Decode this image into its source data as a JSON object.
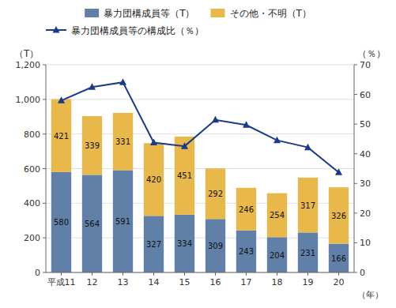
{
  "chart_data": {
    "type": "bar",
    "stacked": true,
    "categories": [
      "平成11",
      "12",
      "13",
      "14",
      "15",
      "16",
      "17",
      "18",
      "19",
      "20"
    ],
    "series": [
      {
        "name": "暴力団構成員等（T）",
        "color": "#6080a8",
        "values": [
          580,
          564,
          591,
          327,
          334,
          309,
          243,
          204,
          231,
          166
        ]
      },
      {
        "name": "その他・不明（T）",
        "color": "#e8b84b",
        "values": [
          421,
          339,
          331,
          420,
          451,
          292,
          246,
          254,
          317,
          326
        ]
      },
      {
        "name": "暴力団構成員等の構成比（％）",
        "type": "line",
        "axis": "y2",
        "color": "#1a3a8a",
        "marker": "triangle",
        "values": [
          57.94,
          62.46,
          64.1,
          43.77,
          42.55,
          51.41,
          49.69,
          44.54,
          42.15,
          33.74
        ]
      }
    ],
    "y_label": "（T）",
    "y2_label": "（％）",
    "x_label": "（年）",
    "ylim": [
      0,
      1200
    ],
    "yticks": [
      0,
      200,
      400,
      600,
      800,
      {
        "value": 1000,
        "label": "1,000"
      },
      {
        "value": 1200,
        "label": "1,200"
      }
    ],
    "y2lim": [
      0,
      70
    ],
    "y2ticks": [
      0,
      10,
      20,
      30,
      40,
      50,
      60,
      70
    ],
    "grid": true,
    "data_labels": true,
    "legend": "top"
  }
}
